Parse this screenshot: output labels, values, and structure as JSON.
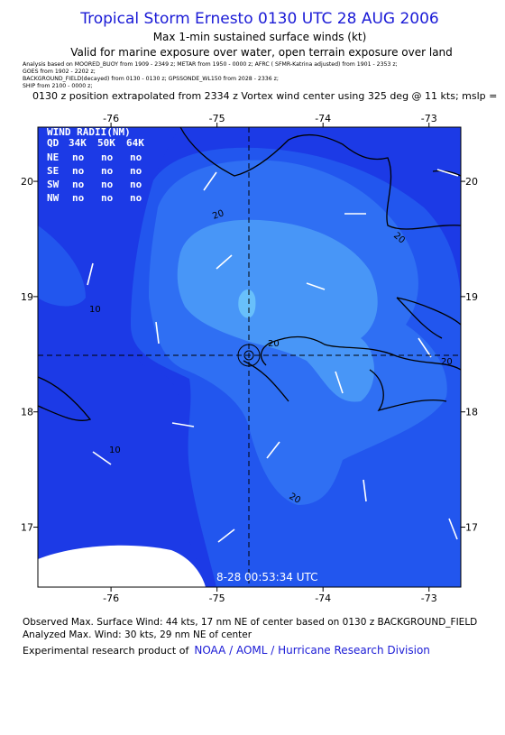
{
  "header": {
    "title": "Tropical Storm Ernesto 0130 UTC 28 AUG 2006",
    "subtitle": "Max 1-min sustained surface winds (kt)",
    "validity": "Valid for marine exposure over water, open terrain exposure over land",
    "sources": [
      "Analysis based on MOORED_BUOY from 1909 - 2349 z; METAR from 1950 - 0000 z; AFRC ( SFMR-Katrina adjusted) from 1901 - 2353 z;",
      "GOES from 1902 - 2202 z;",
      "BACKGROUND_FIELD(decayed) from 0130 - 0130 z; GPSSONDE_WL150 from 2028 - 2336 z;",
      "SHIP from 2100 - 0000 z;"
    ],
    "position_note": "0130 z position extrapolated from 2334 z Vortex wind center using 325 deg @ 11 kts; mslp ="
  },
  "map": {
    "lon_range": [
      -76.69,
      -72.7
    ],
    "lat_range": [
      16.48,
      20.47
    ],
    "lon_ticks": [
      -76,
      -75,
      -74,
      -73
    ],
    "lat_ticks": [
      20,
      19,
      18,
      17
    ],
    "contour_labels": [
      20,
      20,
      10,
      20,
      20,
      10,
      20
    ],
    "timestamp": "8-28 00:53:34 UTC",
    "wind_radii": {
      "title": "WIND RADII(NM)",
      "columns": [
        "QD",
        "34K",
        "50K",
        "64K"
      ],
      "rows": [
        [
          "NE",
          "no",
          "no",
          "no"
        ],
        [
          "SE",
          "no",
          "no",
          "no"
        ],
        [
          "SW",
          "no",
          "no",
          "no"
        ],
        [
          "NW",
          "no",
          "no",
          "no"
        ]
      ]
    }
  },
  "footer": {
    "observed": "Observed Max. Surface Wind: 44 kts, 17 nm NE of center based on 0130 z BACKGROUND_FIELD",
    "analyzed": "Analyzed Max. Wind: 30 kts, 29 nm NE of center",
    "credit": "Experimental research product of",
    "credit_link": "NOAA / AOML / Hurricane Research Division"
  }
}
